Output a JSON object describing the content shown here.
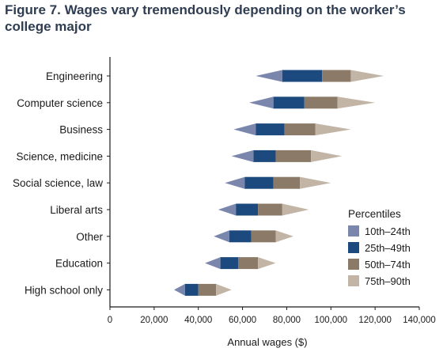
{
  "chart_data": {
    "type": "bar",
    "title_line1": "Figure 7. Wages vary tremendously depending on the worker’s",
    "title_line2": "college major",
    "xlabel": "Annual wages ($)",
    "xlim": [
      0,
      140000
    ],
    "xticks": [
      0,
      20000,
      40000,
      60000,
      80000,
      100000,
      120000,
      140000
    ],
    "xtick_labels": [
      "0",
      "20,000",
      "40,000",
      "60,000",
      "80,000",
      "100,000",
      "120,000",
      "140,000"
    ],
    "legend_title": "Percentiles",
    "legend_position": "right",
    "series": [
      {
        "name": "10th–24th",
        "color": "#7b86ad"
      },
      {
        "name": "25th–49th",
        "color": "#1d4a7e"
      },
      {
        "name": "50th–74th",
        "color": "#8c7a68"
      },
      {
        "name": "75th–90th",
        "color": "#c2b5a6"
      }
    ],
    "categories": [
      {
        "label": "Engineering",
        "p10": 66000,
        "p25": 78000,
        "p50": 96000,
        "p75": 109000,
        "p90": 124000
      },
      {
        "label": "Computer science",
        "p10": 63000,
        "p25": 74000,
        "p50": 88000,
        "p75": 103000,
        "p90": 120000
      },
      {
        "label": "Business",
        "p10": 56000,
        "p25": 66000,
        "p50": 79000,
        "p75": 93000,
        "p90": 109000
      },
      {
        "label": "Science, medicine",
        "p10": 55000,
        "p25": 65000,
        "p50": 75000,
        "p75": 91000,
        "p90": 105000
      },
      {
        "label": "Social science, law",
        "p10": 52000,
        "p25": 61000,
        "p50": 74000,
        "p75": 86000,
        "p90": 100000
      },
      {
        "label": "Liberal arts",
        "p10": 49000,
        "p25": 57000,
        "p50": 67000,
        "p75": 78000,
        "p90": 90000
      },
      {
        "label": "Other",
        "p10": 47000,
        "p25": 54000,
        "p50": 64000,
        "p75": 75000,
        "p90": 83000
      },
      {
        "label": "Education",
        "p10": 43000,
        "p25": 50000,
        "p50": 58000,
        "p75": 67000,
        "p90": 75000
      },
      {
        "label": "High school only",
        "p10": 29000,
        "p25": 34000,
        "p50": 40000,
        "p75": 48000,
        "p90": 55000
      }
    ]
  }
}
